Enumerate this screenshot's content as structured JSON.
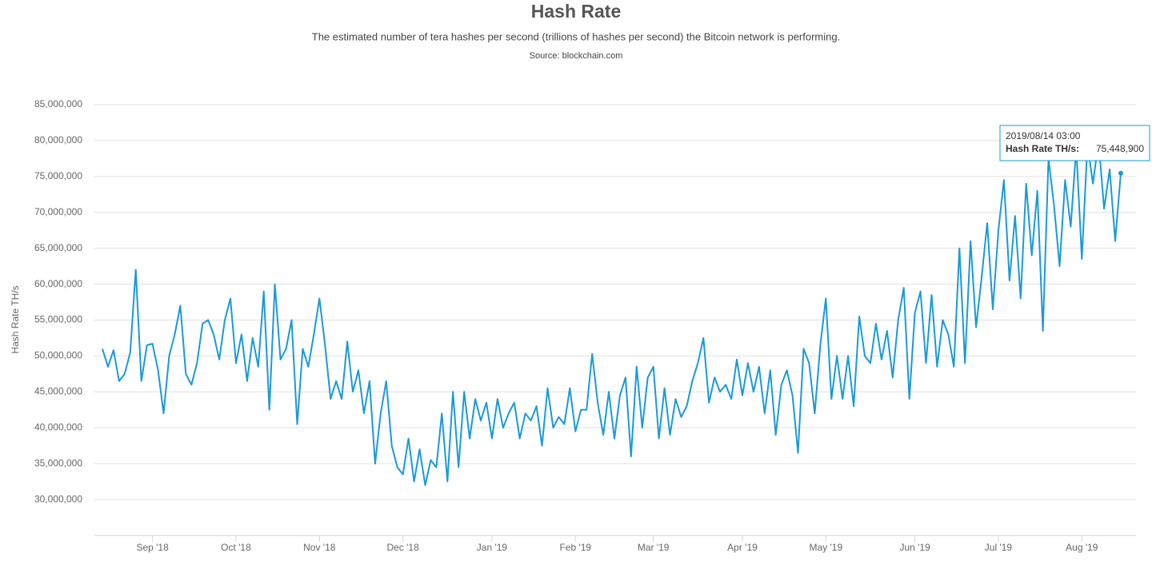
{
  "chart_data": {
    "type": "line",
    "title": "Hash Rate",
    "subtitle": "The estimated number of tera hashes per second (trillions of hashes per second) the Bitcoin network is performing.",
    "source": "Source: blockchain.com",
    "y_label": "Hash Rate TH/s",
    "categories": [
      null,
      null,
      null,
      null,
      null,
      null,
      null,
      null,
      null,
      "Sep '18",
      null,
      null,
      null,
      null,
      null,
      null,
      null,
      null,
      null,
      null,
      null,
      null,
      null,
      null,
      "Oct '18",
      null,
      null,
      null,
      null,
      null,
      null,
      null,
      null,
      null,
      null,
      null,
      null,
      null,
      null,
      "Nov '18",
      null,
      null,
      null,
      null,
      null,
      null,
      null,
      null,
      null,
      null,
      null,
      null,
      null,
      null,
      "Dec '18",
      null,
      null,
      null,
      null,
      null,
      null,
      null,
      null,
      null,
      null,
      null,
      null,
      null,
      null,
      null,
      "Jan '19",
      null,
      null,
      null,
      null,
      null,
      null,
      null,
      null,
      null,
      null,
      null,
      null,
      null,
      null,
      "Feb '19",
      null,
      null,
      null,
      null,
      null,
      null,
      null,
      null,
      null,
      null,
      null,
      null,
      null,
      "Mar '19",
      null,
      null,
      null,
      null,
      null,
      null,
      null,
      null,
      null,
      null,
      null,
      null,
      null,
      null,
      null,
      "Apr '19",
      null,
      null,
      null,
      null,
      null,
      null,
      null,
      null,
      null,
      null,
      null,
      null,
      null,
      null,
      "May '19",
      null,
      null,
      null,
      null,
      null,
      null,
      null,
      null,
      null,
      null,
      null,
      null,
      null,
      null,
      null,
      "Jun '19",
      null,
      null,
      null,
      null,
      null,
      null,
      null,
      null,
      null,
      null,
      null,
      null,
      null,
      null,
      "Jul '19",
      null,
      null,
      null,
      null,
      null,
      null,
      null,
      null,
      null,
      null,
      null,
      null,
      null,
      null,
      "Aug '19",
      null,
      null,
      null,
      null,
      null,
      null,
      null
    ],
    "series": [
      {
        "name": "Hash Rate TH/s",
        "color": "#1a9ad6",
        "values": [
          51000000,
          48500000,
          50800000,
          46500000,
          47500000,
          50500000,
          62000000,
          46500000,
          51500000,
          51700000,
          48000000,
          42000000,
          50000000,
          53000000,
          57000000,
          47500000,
          46000000,
          49000000,
          54500000,
          55000000,
          53000000,
          49500000,
          55000000,
          58000000,
          49000000,
          53000000,
          46500000,
          52500000,
          48500000,
          59000000,
          42500000,
          60000000,
          49500000,
          51000000,
          55000000,
          40500000,
          51000000,
          48500000,
          53000000,
          58000000,
          51500000,
          44000000,
          46500000,
          44000000,
          52000000,
          45000000,
          48000000,
          42000000,
          46500000,
          35000000,
          42000000,
          46500000,
          37500000,
          34500000,
          33500000,
          38500000,
          32500000,
          37000000,
          32000000,
          35500000,
          34500000,
          42000000,
          32500000,
          45000000,
          34500000,
          45000000,
          38500000,
          44000000,
          41000000,
          43500000,
          38500000,
          44000000,
          40000000,
          42000000,
          43500000,
          38500000,
          42000000,
          41000000,
          43000000,
          37500000,
          45500000,
          40000000,
          41500000,
          40500000,
          45500000,
          39500000,
          42500000,
          42500000,
          50300000,
          43500000,
          39000000,
          45000000,
          38500000,
          44500000,
          47000000,
          36000000,
          48500000,
          40000000,
          47000000,
          48500000,
          38500000,
          45500000,
          39000000,
          44000000,
          41500000,
          43000000,
          46500000,
          49000000,
          52500000,
          43500000,
          47000000,
          45000000,
          46000000,
          44000000,
          49500000,
          44500000,
          49000000,
          45000000,
          48500000,
          42000000,
          48000000,
          39000000,
          46000000,
          48000000,
          44500000,
          36500000,
          51000000,
          49000000,
          42000000,
          51500000,
          58000000,
          44000000,
          50000000,
          44000000,
          50000000,
          43000000,
          55500000,
          50000000,
          49000000,
          54500000,
          49500000,
          53500000,
          47000000,
          55000000,
          59500000,
          44000000,
          56000000,
          59000000,
          49000000,
          58500000,
          48500000,
          55000000,
          53000000,
          48500000,
          65000000,
          49000000,
          66000000,
          54000000,
          61000000,
          68500000,
          56500000,
          67500000,
          74500000,
          60500000,
          69500000,
          58000000,
          74000000,
          64000000,
          73000000,
          53500000,
          77500000,
          71000000,
          62500000,
          74500000,
          68000000,
          79000000,
          63500000,
          79500000,
          74000000,
          80000000,
          70500000,
          76000000,
          66000000,
          75448900
        ]
      }
    ],
    "ylim": [
      25000000,
      85000000
    ],
    "yticks": [
      {
        "value": 30000000,
        "label": "30,000,000"
      },
      {
        "value": 35000000,
        "label": "35,000,000"
      },
      {
        "value": 40000000,
        "label": "40,000,000"
      },
      {
        "value": 45000000,
        "label": "45,000,000"
      },
      {
        "value": 50000000,
        "label": "50,000,000"
      },
      {
        "value": 55000000,
        "label": "55,000,000"
      },
      {
        "value": 60000000,
        "label": "60,000,000"
      },
      {
        "value": 65000000,
        "label": "65,000,000"
      },
      {
        "value": 70000000,
        "label": "70,000,000"
      },
      {
        "value": 75000000,
        "label": "75,000,000"
      },
      {
        "value": 80000000,
        "label": "80,000,000"
      },
      {
        "value": 85000000,
        "label": "85,000,000"
      }
    ],
    "grid": true,
    "tooltip": {
      "title": "2019/08/14 03:00",
      "label": "Hash Rate TH/s:",
      "value_label": "75,448,900"
    }
  }
}
